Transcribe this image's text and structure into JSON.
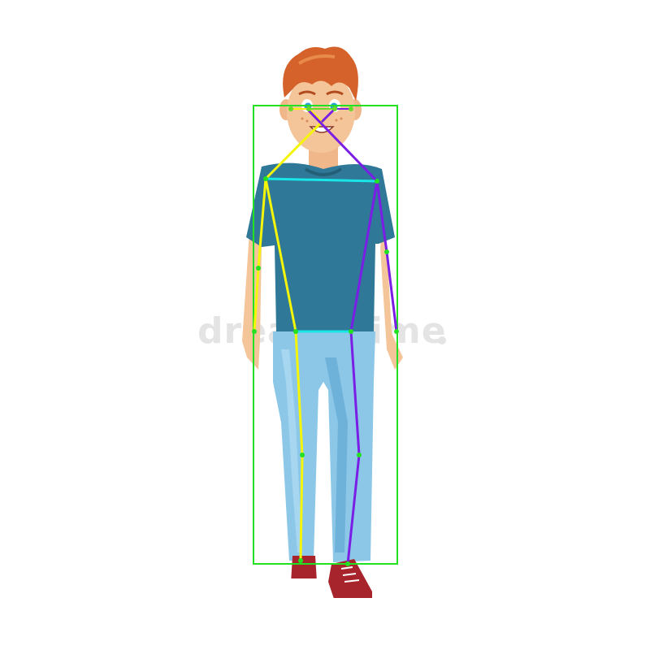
{
  "watermark": {
    "text": "dreamstime"
  },
  "overlay": {
    "box_color": "#22e022",
    "limb_colors": {
      "right_side": "#f5f50a",
      "left_side": "#7a1ee6",
      "shoulder_line": "#19e6e6",
      "hip_line": "#19e6e6",
      "face_lines": "#66dd22"
    }
  },
  "figure": {
    "hair_color": "#d4622a",
    "skin_color": "#f5c59a",
    "shirt_color": "#2f7898",
    "jeans_color": "#8cc7e8",
    "shoe_color": "#a8242c"
  }
}
